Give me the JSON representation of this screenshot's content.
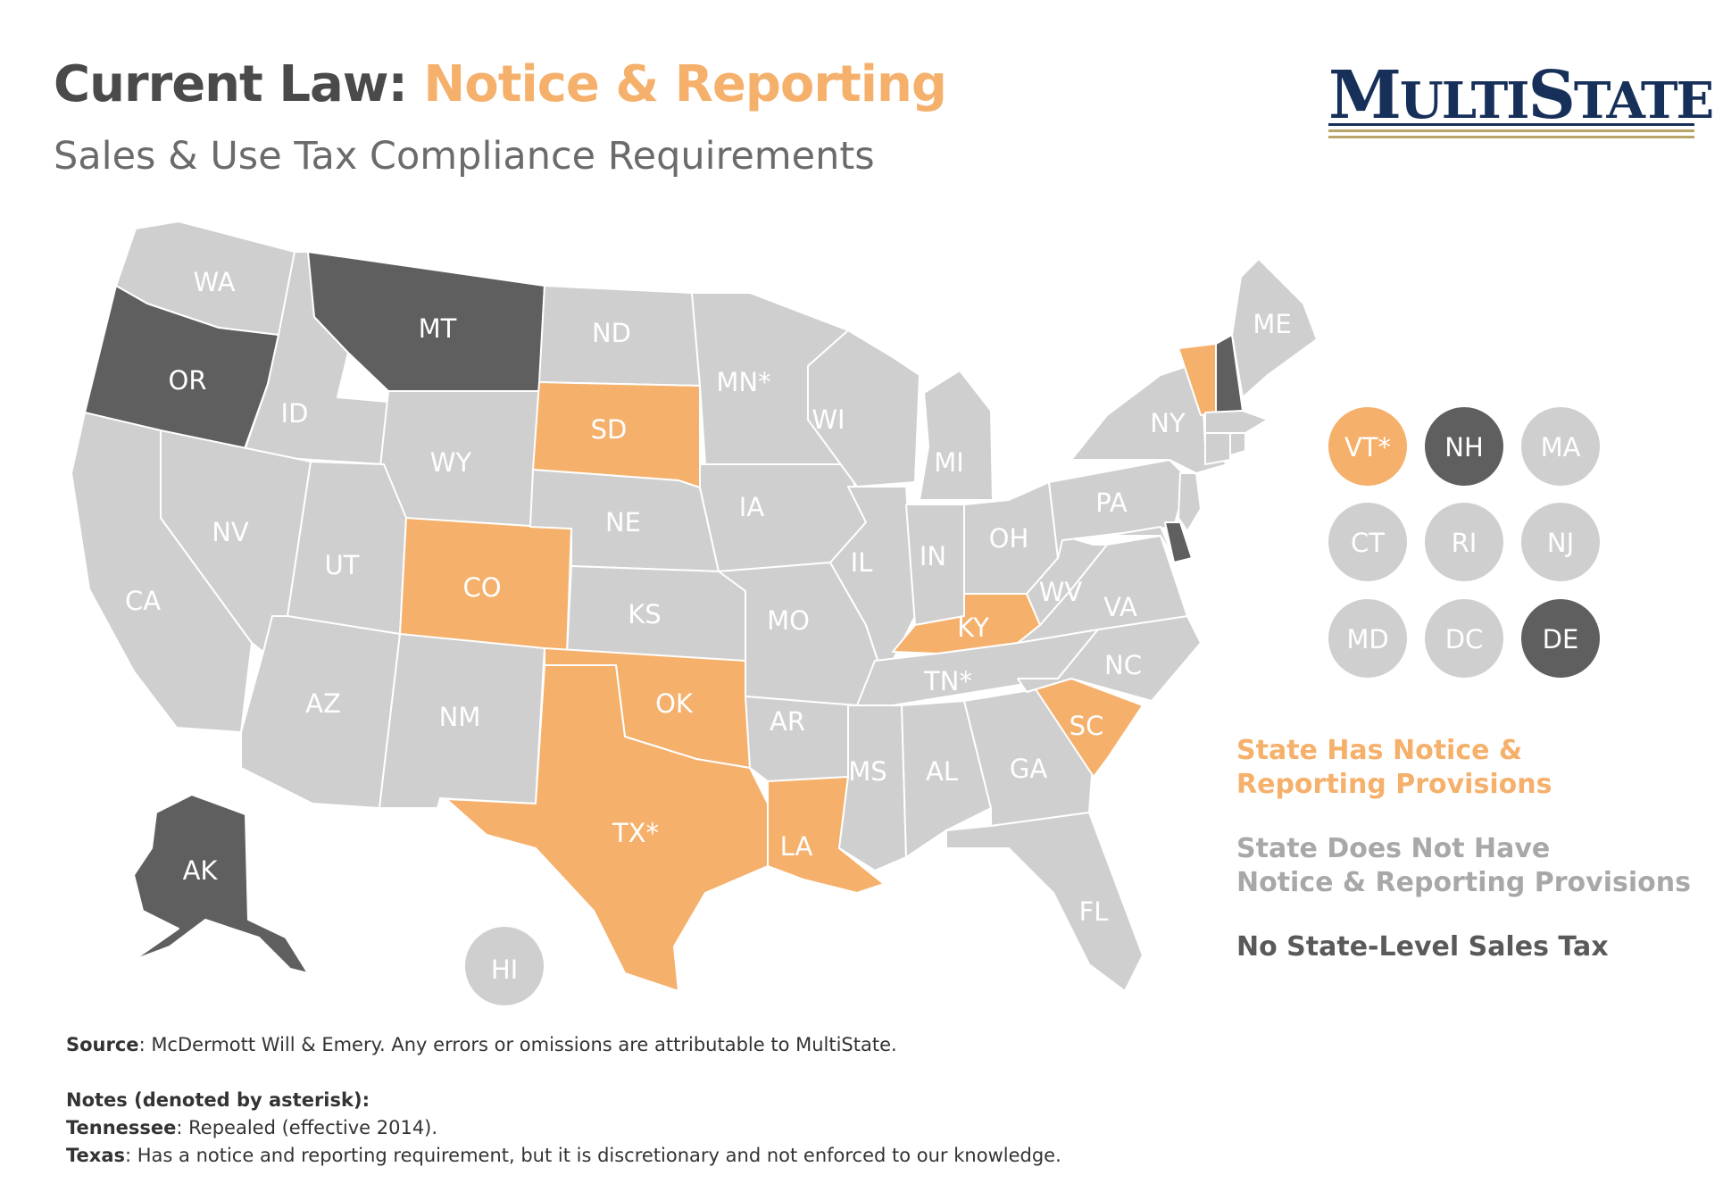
{
  "header": {
    "title_prefix": "Current Law:",
    "title_highlight": "Notice & Reporting",
    "subtitle": "Sales & Use Tax Compliance Requirements",
    "logo_text_big1": "M",
    "logo_text_small1": "ULTI",
    "logo_text_big2": "S",
    "logo_text_small2": "TATE"
  },
  "colors": {
    "has_provisions": "#f5b06b",
    "no_provisions": "#cfcfcf",
    "no_sales_tax": "#5f5f5f",
    "logo_navy": "#17305a",
    "logo_gold": "#b9a46a"
  },
  "legend": {
    "has_provisions": [
      "State Has Notice &",
      "Reporting Provisions"
    ],
    "no_provisions": [
      "State Does Not Have",
      "Notice & Reporting Provisions"
    ],
    "no_sales_tax": "No State-Level Sales Tax"
  },
  "states": [
    {
      "abbr": "WA",
      "label": "WA",
      "category": "no_provisions"
    },
    {
      "abbr": "OR",
      "label": "OR",
      "category": "no_sales_tax"
    },
    {
      "abbr": "CA",
      "label": "CA",
      "category": "no_provisions"
    },
    {
      "abbr": "ID",
      "label": "ID",
      "category": "no_provisions"
    },
    {
      "abbr": "NV",
      "label": "NV",
      "category": "no_provisions"
    },
    {
      "abbr": "MT",
      "label": "MT",
      "category": "no_sales_tax"
    },
    {
      "abbr": "WY",
      "label": "WY",
      "category": "no_provisions"
    },
    {
      "abbr": "UT",
      "label": "UT",
      "category": "no_provisions"
    },
    {
      "abbr": "AZ",
      "label": "AZ",
      "category": "no_provisions"
    },
    {
      "abbr": "CO",
      "label": "CO",
      "category": "has_provisions"
    },
    {
      "abbr": "NM",
      "label": "NM",
      "category": "no_provisions"
    },
    {
      "abbr": "ND",
      "label": "ND",
      "category": "no_provisions"
    },
    {
      "abbr": "SD",
      "label": "SD",
      "category": "has_provisions"
    },
    {
      "abbr": "NE",
      "label": "NE",
      "category": "no_provisions"
    },
    {
      "abbr": "KS",
      "label": "KS",
      "category": "no_provisions"
    },
    {
      "abbr": "OK",
      "label": "OK",
      "category": "has_provisions"
    },
    {
      "abbr": "TX",
      "label": "TX*",
      "category": "has_provisions"
    },
    {
      "abbr": "MN",
      "label": "MN*",
      "category": "no_provisions"
    },
    {
      "abbr": "IA",
      "label": "IA",
      "category": "no_provisions"
    },
    {
      "abbr": "MO",
      "label": "MO",
      "category": "no_provisions"
    },
    {
      "abbr": "AR",
      "label": "AR",
      "category": "no_provisions"
    },
    {
      "abbr": "LA",
      "label": "LA",
      "category": "has_provisions"
    },
    {
      "abbr": "WI",
      "label": "WI",
      "category": "no_provisions"
    },
    {
      "abbr": "IL",
      "label": "IL",
      "category": "no_provisions"
    },
    {
      "abbr": "MI",
      "label": "MI",
      "category": "no_provisions"
    },
    {
      "abbr": "IN",
      "label": "IN",
      "category": "no_provisions"
    },
    {
      "abbr": "OH",
      "label": "OH",
      "category": "no_provisions"
    },
    {
      "abbr": "KY",
      "label": "KY",
      "category": "has_provisions"
    },
    {
      "abbr": "TN",
      "label": "TN*",
      "category": "no_provisions"
    },
    {
      "abbr": "MS",
      "label": "MS",
      "category": "no_provisions"
    },
    {
      "abbr": "AL",
      "label": "AL",
      "category": "no_provisions"
    },
    {
      "abbr": "GA",
      "label": "GA",
      "category": "no_provisions"
    },
    {
      "abbr": "FL",
      "label": "FL",
      "category": "no_provisions"
    },
    {
      "abbr": "SC",
      "label": "SC",
      "category": "has_provisions"
    },
    {
      "abbr": "NC",
      "label": "NC",
      "category": "no_provisions"
    },
    {
      "abbr": "VA",
      "label": "VA",
      "category": "no_provisions"
    },
    {
      "abbr": "WV",
      "label": "WV",
      "category": "no_provisions"
    },
    {
      "abbr": "PA",
      "label": "PA",
      "category": "no_provisions"
    },
    {
      "abbr": "NY",
      "label": "NY",
      "category": "no_provisions"
    },
    {
      "abbr": "VT",
      "label": "VT*",
      "category": "has_provisions"
    },
    {
      "abbr": "NH",
      "label": "NH",
      "category": "no_sales_tax"
    },
    {
      "abbr": "ME",
      "label": "ME",
      "category": "no_provisions"
    },
    {
      "abbr": "MA",
      "label": "MA",
      "category": "no_provisions"
    },
    {
      "abbr": "CT",
      "label": "CT",
      "category": "no_provisions"
    },
    {
      "abbr": "RI",
      "label": "RI",
      "category": "no_provisions"
    },
    {
      "abbr": "NJ",
      "label": "NJ",
      "category": "no_provisions"
    },
    {
      "abbr": "MD",
      "label": "MD",
      "category": "no_provisions"
    },
    {
      "abbr": "DC",
      "label": "DC",
      "category": "no_provisions"
    },
    {
      "abbr": "DE",
      "label": "DE",
      "category": "no_sales_tax"
    },
    {
      "abbr": "AK",
      "label": "AK",
      "category": "no_sales_tax"
    },
    {
      "abbr": "HI",
      "label": "HI",
      "category": "no_provisions"
    }
  ],
  "notes": {
    "source_label": "Source",
    "source_text": ": McDermott Will & Emery. Any errors or omissions are attributable to MultiState.",
    "notes_heading": "Notes (denoted by asterisk):",
    "tn_label": "Tennessee",
    "tn_text": ": Repealed (effective 2014).",
    "tx_label": "Texas",
    "tx_text": ": Has a notice and reporting requirement, but it is discretionary and not enforced to our knowledge."
  }
}
